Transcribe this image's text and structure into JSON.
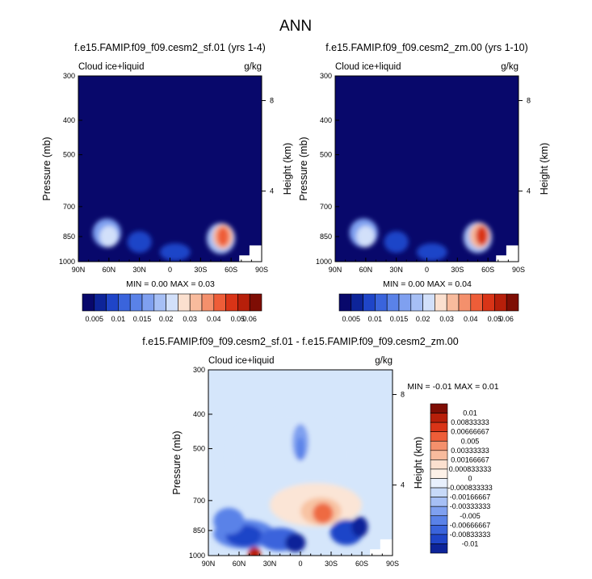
{
  "page_title": "ANN",
  "chart_data": [
    {
      "type": "heatmap",
      "title": "f.e15.FAMIP.f09_f09.cesm2_sf.01 (yrs 1-4)",
      "subtitle_left": "Cloud ice+liquid",
      "subtitle_right": "g/kg",
      "ylabel": "Pressure (mb)",
      "ylabel_right": "Height (km)",
      "x_ticks": [
        "90N",
        "60N",
        "30N",
        "0",
        "30S",
        "60S",
        "90S"
      ],
      "y_ticks": [
        "300",
        "400",
        "500",
        "700",
        "850",
        "1000"
      ],
      "y_ticks_right": [
        "8",
        "4"
      ],
      "stats": {
        "min_label": "MIN =",
        "min": "0.00",
        "max_label": "MAX =",
        "max": "0.03"
      },
      "colorbar_labels": [
        "0.005",
        "0.01",
        "0.015",
        "0.02",
        "0.03",
        "0.04",
        "0.05",
        "0.06"
      ],
      "blobs": [
        {
          "lat": 62,
          "p": 830,
          "rx": 14,
          "ry": 95,
          "level": 5
        },
        {
          "lat": 60,
          "p": 850,
          "rx": 9,
          "ry": 55,
          "level": 7
        },
        {
          "lat": 30,
          "p": 880,
          "rx": 12,
          "ry": 60,
          "level": 2
        },
        {
          "lat": -5,
          "p": 940,
          "rx": 15,
          "ry": 40,
          "level": 2
        },
        {
          "lat": -50,
          "p": 860,
          "rx": 14,
          "ry": 110,
          "level": 6
        },
        {
          "lat": -52,
          "p": 850,
          "rx": 10,
          "ry": 75,
          "level": 9
        },
        {
          "lat": -52,
          "p": 850,
          "rx": 6,
          "ry": 45,
          "level": 11
        }
      ]
    },
    {
      "type": "heatmap",
      "title": "f.e15.FAMIP.f09_f09.cesm2_zm.00 (yrs 1-10)",
      "subtitle_left": "Cloud ice+liquid",
      "subtitle_right": "g/kg",
      "ylabel": "Pressure (mb)",
      "ylabel_right": "Height (km)",
      "x_ticks": [
        "90N",
        "60N",
        "30N",
        "0",
        "30S",
        "60S",
        "90S"
      ],
      "y_ticks": [
        "300",
        "400",
        "500",
        "700",
        "850",
        "1000"
      ],
      "y_ticks_right": [
        "8",
        "4"
      ],
      "stats": {
        "min_label": "MIN =",
        "min": "0.00",
        "max_label": "MAX =",
        "max": "0.04"
      },
      "colorbar_labels": [
        "0.005",
        "0.01",
        "0.015",
        "0.02",
        "0.03",
        "0.04",
        "0.05",
        "0.06"
      ],
      "blobs": [
        {
          "lat": 62,
          "p": 830,
          "rx": 14,
          "ry": 95,
          "level": 5
        },
        {
          "lat": 60,
          "p": 850,
          "rx": 9,
          "ry": 55,
          "level": 7
        },
        {
          "lat": 30,
          "p": 880,
          "rx": 12,
          "ry": 60,
          "level": 2
        },
        {
          "lat": -5,
          "p": 940,
          "rx": 15,
          "ry": 40,
          "level": 2
        },
        {
          "lat": -50,
          "p": 855,
          "rx": 14,
          "ry": 110,
          "level": 6
        },
        {
          "lat": -52,
          "p": 845,
          "rx": 10,
          "ry": 75,
          "level": 9
        },
        {
          "lat": -54,
          "p": 845,
          "rx": 6,
          "ry": 45,
          "level": 12
        }
      ]
    },
    {
      "type": "heatmap",
      "title": "f.e15.FAMIP.f09_f09.cesm2_sf.01 - f.e15.FAMIP.f09_f09.cesm2_zm.00",
      "subtitle_left": "Cloud ice+liquid",
      "subtitle_right": "g/kg",
      "ylabel": "Pressure (mb)",
      "ylabel_right": "Height (km)",
      "x_ticks": [
        "90N",
        "60N",
        "30N",
        "0",
        "30S",
        "60S",
        "90S"
      ],
      "y_ticks": [
        "300",
        "400",
        "500",
        "700",
        "850",
        "1000"
      ],
      "y_ticks_right": [
        "8",
        "4"
      ],
      "stats": {
        "min_label": "MIN =",
        "min": "-0.01",
        "max_label": "MAX =",
        "max": "0.01"
      },
      "colorbar_labels": [
        "0.01",
        "0.00833333",
        "0.00666667",
        "0.005",
        "0.00333333",
        "0.00166667",
        "0.000833333",
        "0",
        "-0.000833333",
        "-0.00166667",
        "-0.00333333",
        "-0.005",
        "-0.00666667",
        "-0.00833333",
        "-0.01"
      ],
      "blobs": [
        {
          "lat": 10,
          "p": 520,
          "rx": 60,
          "ry": 250,
          "level": 7
        },
        {
          "lat": -15,
          "p": 720,
          "rx": 45,
          "ry": 150,
          "level": 8
        },
        {
          "lat": 0,
          "p": 480,
          "rx": 8,
          "ry": 80,
          "level": 5
        },
        {
          "lat": 0,
          "p": 500,
          "rx": 4,
          "ry": 40,
          "level": 4
        },
        {
          "lat": -20,
          "p": 750,
          "rx": 20,
          "ry": 80,
          "level": 9
        },
        {
          "lat": -22,
          "p": 760,
          "rx": 10,
          "ry": 45,
          "level": 11
        },
        {
          "lat": 55,
          "p": 870,
          "rx": 30,
          "ry": 100,
          "level": 4
        },
        {
          "lat": 55,
          "p": 880,
          "rx": 18,
          "ry": 60,
          "level": 2
        },
        {
          "lat": 20,
          "p": 900,
          "rx": 20,
          "ry": 70,
          "level": 3
        },
        {
          "lat": -45,
          "p": 860,
          "rx": 16,
          "ry": 80,
          "level": 2
        },
        {
          "lat": -58,
          "p": 830,
          "rx": 8,
          "ry": 50,
          "level": 1
        },
        {
          "lat": 5,
          "p": 920,
          "rx": 10,
          "ry": 45,
          "level": 1
        },
        {
          "lat": 70,
          "p": 800,
          "rx": 15,
          "ry": 80,
          "level": 4
        },
        {
          "lat": 45,
          "p": 990,
          "rx": 6,
          "ry": 20,
          "level": 13
        }
      ]
    }
  ]
}
